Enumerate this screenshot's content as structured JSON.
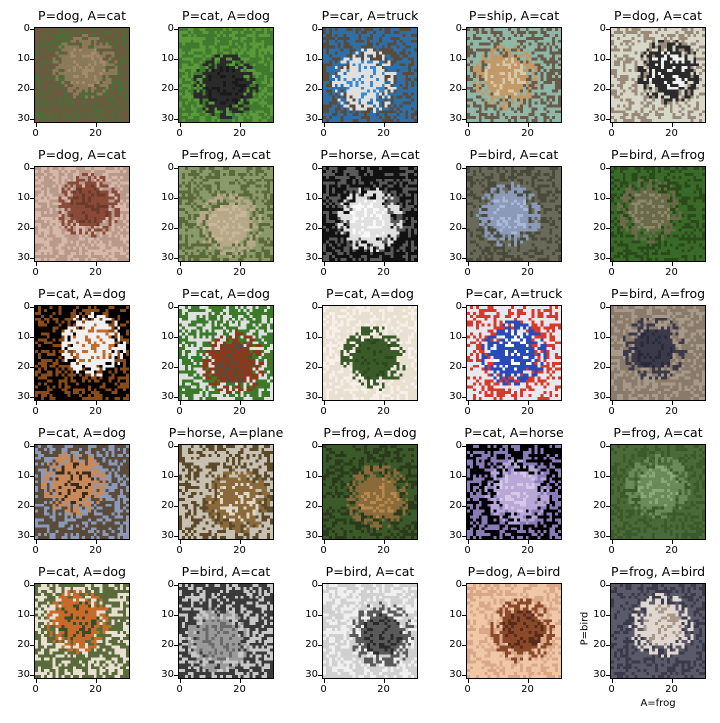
{
  "figure": {
    "panels": [
      {
        "title": "P=dog, A=cat",
        "palette": [
          "#6b5a3f",
          "#8a7a5a",
          "#4f6b3a",
          "#a38b6a"
        ]
      },
      {
        "title": "P=cat, A=dog",
        "palette": [
          "#3f7a2f",
          "#2a2a2a",
          "#5a9a3a",
          "#1a1a1a"
        ]
      },
      {
        "title": "P=car, A=truck",
        "palette": [
          "#2f6fa8",
          "#e0e0e0",
          "#5a4a3a",
          "#3a8ad0"
        ]
      },
      {
        "title": "P=ship, A=cat",
        "palette": [
          "#8fb8a8",
          "#c29a6a",
          "#6a5a4a",
          "#d8c8a8"
        ]
      },
      {
        "title": "P=dog, A=cat",
        "palette": [
          "#d8d8c8",
          "#2a2a2a",
          "#9a8a7a",
          "#f0f0f0"
        ]
      },
      {
        "title": "P=dog, A=cat",
        "palette": [
          "#b89a8a",
          "#8a4a3a",
          "#d8b8a8",
          "#6a3a2a"
        ]
      },
      {
        "title": "P=frog, A=cat",
        "palette": [
          "#8a9a6a",
          "#b8a88a",
          "#5a6a3a",
          "#c8b89a"
        ]
      },
      {
        "title": "P=horse, A=cat",
        "palette": [
          "#111111",
          "#e0e0e0",
          "#5a5a5a",
          "#f8f8f8"
        ]
      },
      {
        "title": "P=bird, A=cat",
        "palette": [
          "#6a6a5a",
          "#8a9ab8",
          "#4a4a3a",
          "#aab8d8"
        ]
      },
      {
        "title": "P=bird, A=frog",
        "palette": [
          "#3a6a2a",
          "#6a6a4a",
          "#2a4a1a",
          "#8a8a6a"
        ]
      },
      {
        "title": "P=cat, A=dog",
        "palette": [
          "#000000",
          "#f0f0f0",
          "#8a4a1a",
          "#c86a2a"
        ]
      },
      {
        "title": "P=cat, A=dog",
        "palette": [
          "#3a7a2a",
          "#8a3a1a",
          "#e0e0e0",
          "#5a4a3a"
        ]
      },
      {
        "title": "P=cat, A=dog",
        "palette": [
          "#e8e0d0",
          "#3a5a2a",
          "#f8f0e8",
          "#2a4a1a"
        ]
      },
      {
        "title": "P=car, A=truck",
        "palette": [
          "#e8e8f0",
          "#2a4ab8",
          "#d83a2a",
          "#ffffff"
        ]
      },
      {
        "title": "P=bird, A=frog",
        "palette": [
          "#8a7a6a",
          "#3a3a4a",
          "#a89a8a",
          "#2a2a3a"
        ]
      },
      {
        "title": "P=cat, A=dog",
        "palette": [
          "#5a4a3a",
          "#c88a5a",
          "#8a9ab8",
          "#3a2a1a"
        ]
      },
      {
        "title": "P=horse, A=plane",
        "palette": [
          "#c8c0b0",
          "#8a6a3a",
          "#5a4a2a",
          "#e0d8c8"
        ]
      },
      {
        "title": "P=frog, A=dog",
        "palette": [
          "#3a5a2a",
          "#8a6a3a",
          "#2a3a1a",
          "#b88a4a"
        ]
      },
      {
        "title": "P=cat, A=horse",
        "palette": [
          "#000000",
          "#b8a8d8",
          "#8a7ab8",
          "#d8c8e8"
        ]
      },
      {
        "title": "P=frog, A=cat",
        "palette": [
          "#4a6a3a",
          "#6a8a5a",
          "#3a5a2a",
          "#8aa87a"
        ]
      },
      {
        "title": "P=cat, A=dog",
        "palette": [
          "#5a6a3a",
          "#c86a2a",
          "#e8e0d0",
          "#3a4a2a"
        ]
      },
      {
        "title": "P=bird, A=cat",
        "palette": [
          "#3a3a3a",
          "#9a9a9a",
          "#c8c8c8",
          "#6a6a6a"
        ]
      },
      {
        "title": "P=bird, A=cat",
        "palette": [
          "#d0d0d0",
          "#5a5a5a",
          "#f0f0f0",
          "#2a2a2a"
        ]
      },
      {
        "title": "P=dog, A=bird",
        "palette": [
          "#f0c8a8",
          "#8a4a2a",
          "#d8a888",
          "#5a2a1a"
        ]
      },
      {
        "title": "P=frog, A=bird",
        "palette": [
          "#5a5a6a",
          "#e0d8d0",
          "#3a3a4a",
          "#a89888"
        ],
        "ylabel": "P=bird",
        "xlabel": "A=frog"
      }
    ],
    "yticks": [
      "0",
      "10",
      "20",
      "30"
    ],
    "xticks": [
      "0",
      "20"
    ]
  }
}
